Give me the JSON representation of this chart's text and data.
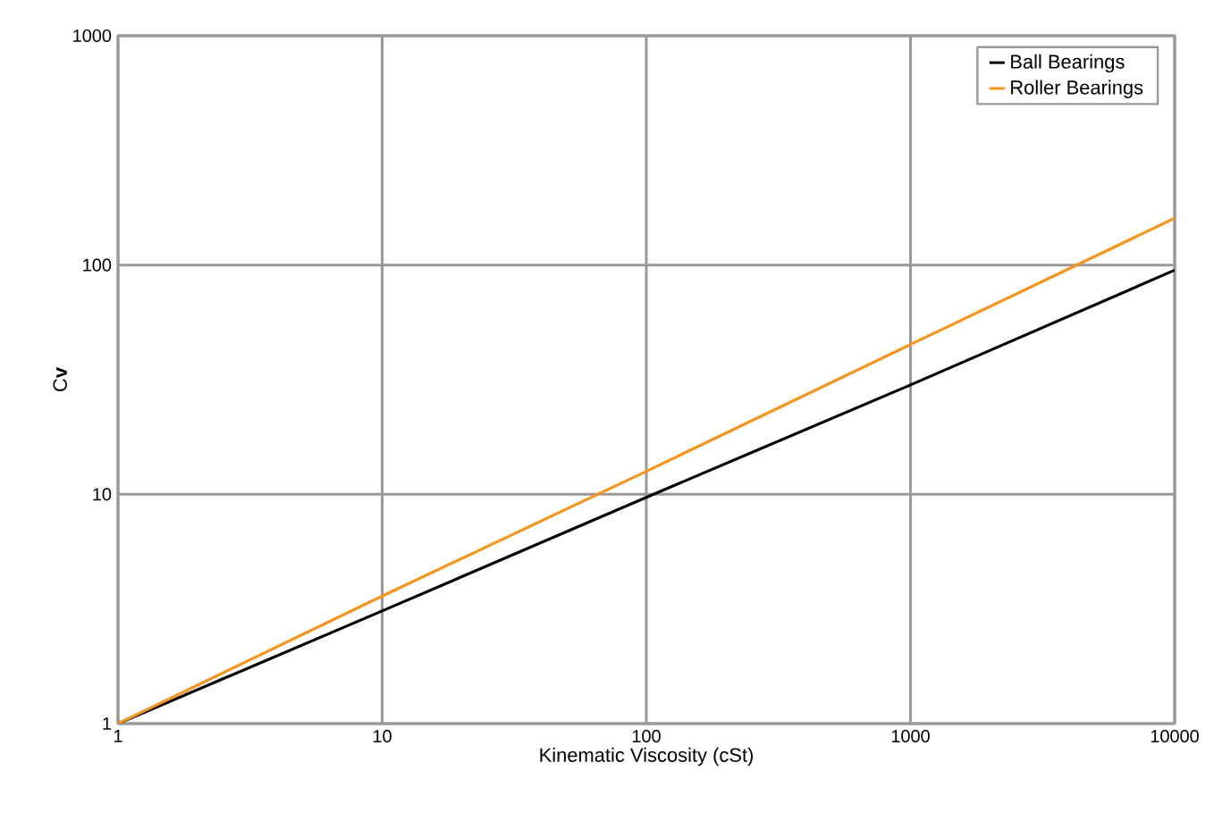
{
  "chart_data": {
    "type": "line",
    "xlabel": "Kinematic Viscosity (cSt)",
    "ylabel": "C**v**",
    "log": "xy",
    "grid": true,
    "legend": "top right",
    "marker": "none",
    "line_style": "solid",
    "xlim": [
      1,
      10000
    ],
    "ylim": [
      1,
      1000
    ],
    "xticks": [
      1,
      10,
      100,
      1000,
      10000
    ],
    "yticks": [
      1,
      10,
      100,
      1000
    ],
    "series": [
      {
        "name": "Ball Bearings",
        "color": "#000000",
        "x": [
          1,
          10,
          100,
          1000,
          10000
        ],
        "values": [
          1,
          3.1,
          9.7,
          30,
          95
        ]
      },
      {
        "name": "Roller Bearings",
        "color": "#f7941d",
        "x": [
          1,
          10,
          100,
          1000,
          10000
        ],
        "values": [
          1,
          3.6,
          12.6,
          45,
          160
        ]
      }
    ]
  }
}
